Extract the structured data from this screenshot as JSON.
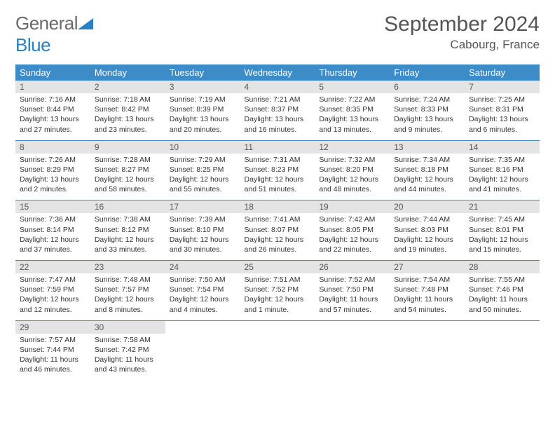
{
  "logo": {
    "word1": "General",
    "word2": "Blue",
    "tri_color": "#2b7fc3"
  },
  "title": "September 2024",
  "location": "Cabourg, France",
  "colors": {
    "header_bg": "#3d8bc7",
    "header_fg": "#ffffff",
    "daynum_bg": "#e4e4e4",
    "daynum_fg": "#555555",
    "body_text": "#333333",
    "rule": "#3d8bc7",
    "page_bg": "#ffffff"
  },
  "typography": {
    "title_fontsize": 30,
    "location_fontsize": 17,
    "dayhead_fontsize": 13,
    "body_fontsize": 10.5
  },
  "day_headers": [
    "Sunday",
    "Monday",
    "Tuesday",
    "Wednesday",
    "Thursday",
    "Friday",
    "Saturday"
  ],
  "weeks": [
    [
      {
        "n": 1,
        "sunrise": "7:16 AM",
        "sunset": "8:44 PM",
        "daylight": "13 hours and 27 minutes."
      },
      {
        "n": 2,
        "sunrise": "7:18 AM",
        "sunset": "8:42 PM",
        "daylight": "13 hours and 23 minutes."
      },
      {
        "n": 3,
        "sunrise": "7:19 AM",
        "sunset": "8:39 PM",
        "daylight": "13 hours and 20 minutes."
      },
      {
        "n": 4,
        "sunrise": "7:21 AM",
        "sunset": "8:37 PM",
        "daylight": "13 hours and 16 minutes."
      },
      {
        "n": 5,
        "sunrise": "7:22 AM",
        "sunset": "8:35 PM",
        "daylight": "13 hours and 13 minutes."
      },
      {
        "n": 6,
        "sunrise": "7:24 AM",
        "sunset": "8:33 PM",
        "daylight": "13 hours and 9 minutes."
      },
      {
        "n": 7,
        "sunrise": "7:25 AM",
        "sunset": "8:31 PM",
        "daylight": "13 hours and 6 minutes."
      }
    ],
    [
      {
        "n": 8,
        "sunrise": "7:26 AM",
        "sunset": "8:29 PM",
        "daylight": "13 hours and 2 minutes."
      },
      {
        "n": 9,
        "sunrise": "7:28 AM",
        "sunset": "8:27 PM",
        "daylight": "12 hours and 58 minutes."
      },
      {
        "n": 10,
        "sunrise": "7:29 AM",
        "sunset": "8:25 PM",
        "daylight": "12 hours and 55 minutes."
      },
      {
        "n": 11,
        "sunrise": "7:31 AM",
        "sunset": "8:23 PM",
        "daylight": "12 hours and 51 minutes."
      },
      {
        "n": 12,
        "sunrise": "7:32 AM",
        "sunset": "8:20 PM",
        "daylight": "12 hours and 48 minutes."
      },
      {
        "n": 13,
        "sunrise": "7:34 AM",
        "sunset": "8:18 PM",
        "daylight": "12 hours and 44 minutes."
      },
      {
        "n": 14,
        "sunrise": "7:35 AM",
        "sunset": "8:16 PM",
        "daylight": "12 hours and 41 minutes."
      }
    ],
    [
      {
        "n": 15,
        "sunrise": "7:36 AM",
        "sunset": "8:14 PM",
        "daylight": "12 hours and 37 minutes."
      },
      {
        "n": 16,
        "sunrise": "7:38 AM",
        "sunset": "8:12 PM",
        "daylight": "12 hours and 33 minutes."
      },
      {
        "n": 17,
        "sunrise": "7:39 AM",
        "sunset": "8:10 PM",
        "daylight": "12 hours and 30 minutes."
      },
      {
        "n": 18,
        "sunrise": "7:41 AM",
        "sunset": "8:07 PM",
        "daylight": "12 hours and 26 minutes."
      },
      {
        "n": 19,
        "sunrise": "7:42 AM",
        "sunset": "8:05 PM",
        "daylight": "12 hours and 22 minutes."
      },
      {
        "n": 20,
        "sunrise": "7:44 AM",
        "sunset": "8:03 PM",
        "daylight": "12 hours and 19 minutes."
      },
      {
        "n": 21,
        "sunrise": "7:45 AM",
        "sunset": "8:01 PM",
        "daylight": "12 hours and 15 minutes."
      }
    ],
    [
      {
        "n": 22,
        "sunrise": "7:47 AM",
        "sunset": "7:59 PM",
        "daylight": "12 hours and 12 minutes."
      },
      {
        "n": 23,
        "sunrise": "7:48 AM",
        "sunset": "7:57 PM",
        "daylight": "12 hours and 8 minutes."
      },
      {
        "n": 24,
        "sunrise": "7:50 AM",
        "sunset": "7:54 PM",
        "daylight": "12 hours and 4 minutes."
      },
      {
        "n": 25,
        "sunrise": "7:51 AM",
        "sunset": "7:52 PM",
        "daylight": "12 hours and 1 minute."
      },
      {
        "n": 26,
        "sunrise": "7:52 AM",
        "sunset": "7:50 PM",
        "daylight": "11 hours and 57 minutes."
      },
      {
        "n": 27,
        "sunrise": "7:54 AM",
        "sunset": "7:48 PM",
        "daylight": "11 hours and 54 minutes."
      },
      {
        "n": 28,
        "sunrise": "7:55 AM",
        "sunset": "7:46 PM",
        "daylight": "11 hours and 50 minutes."
      }
    ],
    [
      {
        "n": 29,
        "sunrise": "7:57 AM",
        "sunset": "7:44 PM",
        "daylight": "11 hours and 46 minutes."
      },
      {
        "n": 30,
        "sunrise": "7:58 AM",
        "sunset": "7:42 PM",
        "daylight": "11 hours and 43 minutes."
      },
      null,
      null,
      null,
      null,
      null
    ]
  ],
  "labels": {
    "sunrise_prefix": "Sunrise: ",
    "sunset_prefix": "Sunset: ",
    "daylight_prefix": "Daylight: "
  }
}
